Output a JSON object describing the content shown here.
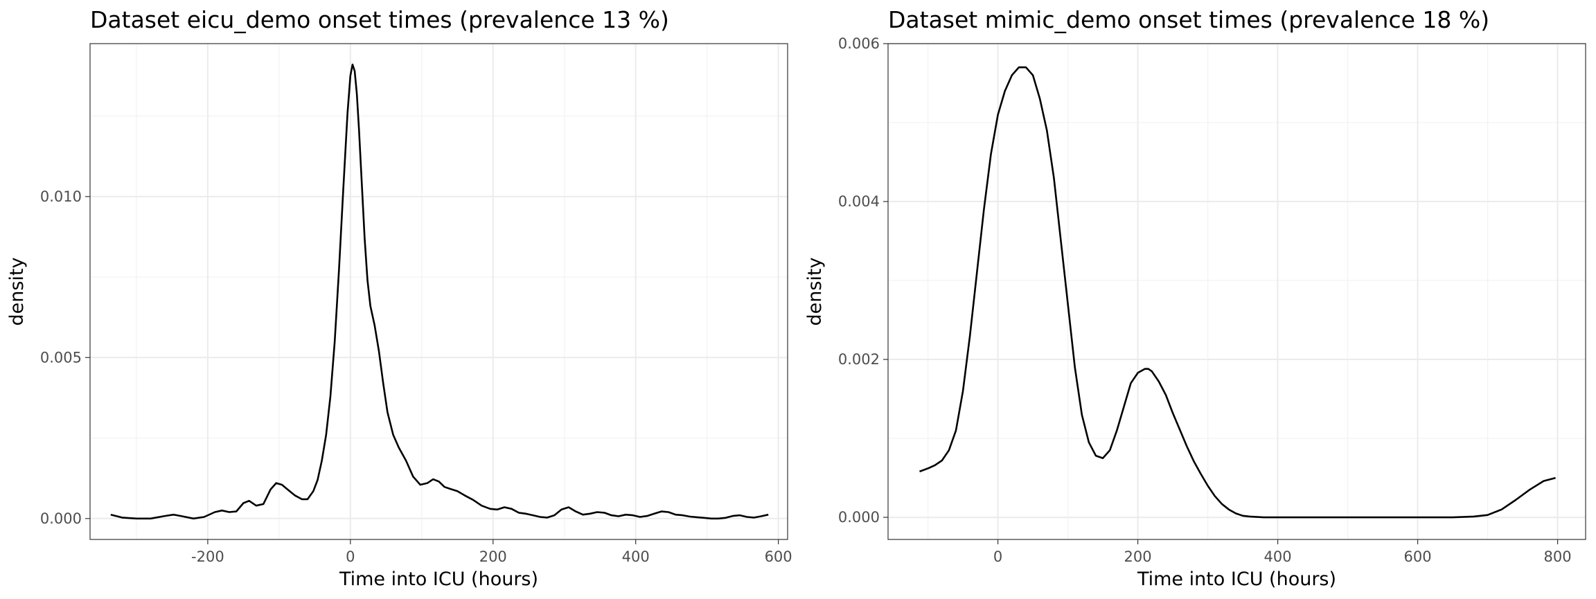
{
  "chart_data": [
    {
      "type": "line",
      "title": "Dataset eicu_demo onset times (prevalence 13 %)",
      "xlabel": "Time into ICU (hours)",
      "ylabel": "density",
      "xlim": [
        -365,
        613
      ],
      "ylim": [
        -0.00065,
        0.01475
      ],
      "x_ticks": [
        -200,
        0,
        200,
        400,
        600
      ],
      "x_tick_labels": [
        "-200",
        "0",
        "200",
        "400",
        "600"
      ],
      "y_ticks": [
        0.0,
        0.005,
        0.01
      ],
      "y_tick_labels": [
        "0.000",
        "0.005",
        "0.010"
      ],
      "grid": true,
      "series": [
        {
          "x": [
            -336,
            -320,
            -300,
            -280,
            -260,
            -248,
            -236,
            -220,
            -205,
            -190,
            -180,
            -170,
            -160,
            -150,
            -142,
            -132,
            -122,
            -112,
            -104,
            -96,
            -88,
            -78,
            -68,
            -60,
            -52,
            -46,
            -40,
            -34,
            -28,
            -22,
            -16,
            -10,
            -4,
            0,
            3,
            6,
            9,
            12,
            16,
            20,
            24,
            28,
            34,
            40,
            46,
            52,
            60,
            68,
            78,
            88,
            98,
            108,
            116,
            124,
            132,
            140,
            150,
            160,
            172,
            184,
            196,
            206,
            216,
            226,
            236,
            246,
            256,
            266,
            276,
            286,
            296,
            306,
            316,
            326,
            336,
            346,
            356,
            366,
            376,
            386,
            396,
            406,
            416,
            426,
            436,
            446,
            456,
            466,
            476,
            486,
            496,
            506,
            516,
            526,
            536,
            546,
            556,
            566,
            576,
            586
          ],
          "y": [
            0.00012,
            3e-05,
            0.0,
            0.0,
            8e-05,
            0.00012,
            7e-05,
            0.0,
            5e-05,
            0.0002,
            0.00025,
            0.0002,
            0.00022,
            0.00048,
            0.00055,
            0.0004,
            0.00045,
            0.0009,
            0.0011,
            0.00105,
            0.0009,
            0.00072,
            0.0006,
            0.0006,
            0.00085,
            0.0012,
            0.0018,
            0.0026,
            0.0038,
            0.0055,
            0.0077,
            0.0102,
            0.0126,
            0.01375,
            0.0141,
            0.0139,
            0.0132,
            0.0121,
            0.0104,
            0.0087,
            0.0074,
            0.0066,
            0.006,
            0.0052,
            0.0042,
            0.0033,
            0.0026,
            0.0022,
            0.0018,
            0.0013,
            0.00105,
            0.0011,
            0.00122,
            0.00115,
            0.00098,
            0.00092,
            0.00085,
            0.00072,
            0.00058,
            0.0004,
            0.0003,
            0.00028,
            0.00035,
            0.0003,
            0.00018,
            0.00015,
            0.0001,
            5e-05,
            3e-05,
            0.0001,
            0.00028,
            0.00035,
            0.00022,
            0.00012,
            0.00015,
            0.0002,
            0.00018,
            0.0001,
            7e-05,
            0.00012,
            0.0001,
            5e-05,
            8e-05,
            0.00015,
            0.00022,
            0.0002,
            0.00012,
            0.0001,
            6e-05,
            4e-05,
            2e-05,
            0.0,
            0.0,
            2e-05,
            8e-05,
            0.0001,
            5e-05,
            3e-05,
            7e-05,
            0.00012
          ]
        }
      ]
    },
    {
      "type": "line",
      "title": "Dataset mimic_demo onset times (prevalence 18 %)",
      "xlabel": "Time into ICU (hours)",
      "ylabel": "density",
      "xlim": [
        -157,
        840
      ],
      "ylim": [
        -0.00028,
        0.006
      ],
      "x_ticks": [
        0,
        200,
        400,
        600,
        800
      ],
      "x_tick_labels": [
        "0",
        "200",
        "400",
        "600",
        "800"
      ],
      "y_ticks": [
        0.0,
        0.002,
        0.004,
        0.006
      ],
      "y_tick_labels": [
        "0.000",
        "0.002",
        "0.004",
        "0.006"
      ],
      "grid": true,
      "series": [
        {
          "x": [
            -112,
            -100,
            -90,
            -80,
            -70,
            -60,
            -50,
            -40,
            -30,
            -20,
            -10,
            0,
            10,
            20,
            30,
            40,
            50,
            60,
            70,
            80,
            90,
            100,
            110,
            120,
            130,
            140,
            150,
            160,
            170,
            180,
            190,
            200,
            210,
            215,
            220,
            230,
            240,
            250,
            260,
            270,
            280,
            290,
            300,
            310,
            320,
            330,
            340,
            350,
            360,
            380,
            400,
            450,
            500,
            550,
            600,
            650,
            680,
            700,
            720,
            740,
            760,
            780,
            797
          ],
          "y": [
            0.00058,
            0.00062,
            0.00066,
            0.00072,
            0.00085,
            0.0011,
            0.0016,
            0.0023,
            0.0031,
            0.0039,
            0.0046,
            0.0051,
            0.0054,
            0.0056,
            0.0057,
            0.0057,
            0.0056,
            0.0053,
            0.0049,
            0.0043,
            0.0035,
            0.0027,
            0.0019,
            0.0013,
            0.00095,
            0.00078,
            0.00075,
            0.00085,
            0.0011,
            0.0014,
            0.0017,
            0.00183,
            0.00188,
            0.00188,
            0.00185,
            0.00172,
            0.00155,
            0.00132,
            0.00111,
            0.0009,
            0.00071,
            0.00055,
            0.0004,
            0.00027,
            0.00017,
            0.0001,
            5e-05,
            2e-05,
            1e-05,
            0.0,
            0.0,
            0.0,
            0.0,
            0.0,
            0.0,
            0.0,
            1e-05,
            3e-05,
            0.0001,
            0.00022,
            0.00035,
            0.00046,
            0.0005
          ]
        }
      ]
    }
  ]
}
